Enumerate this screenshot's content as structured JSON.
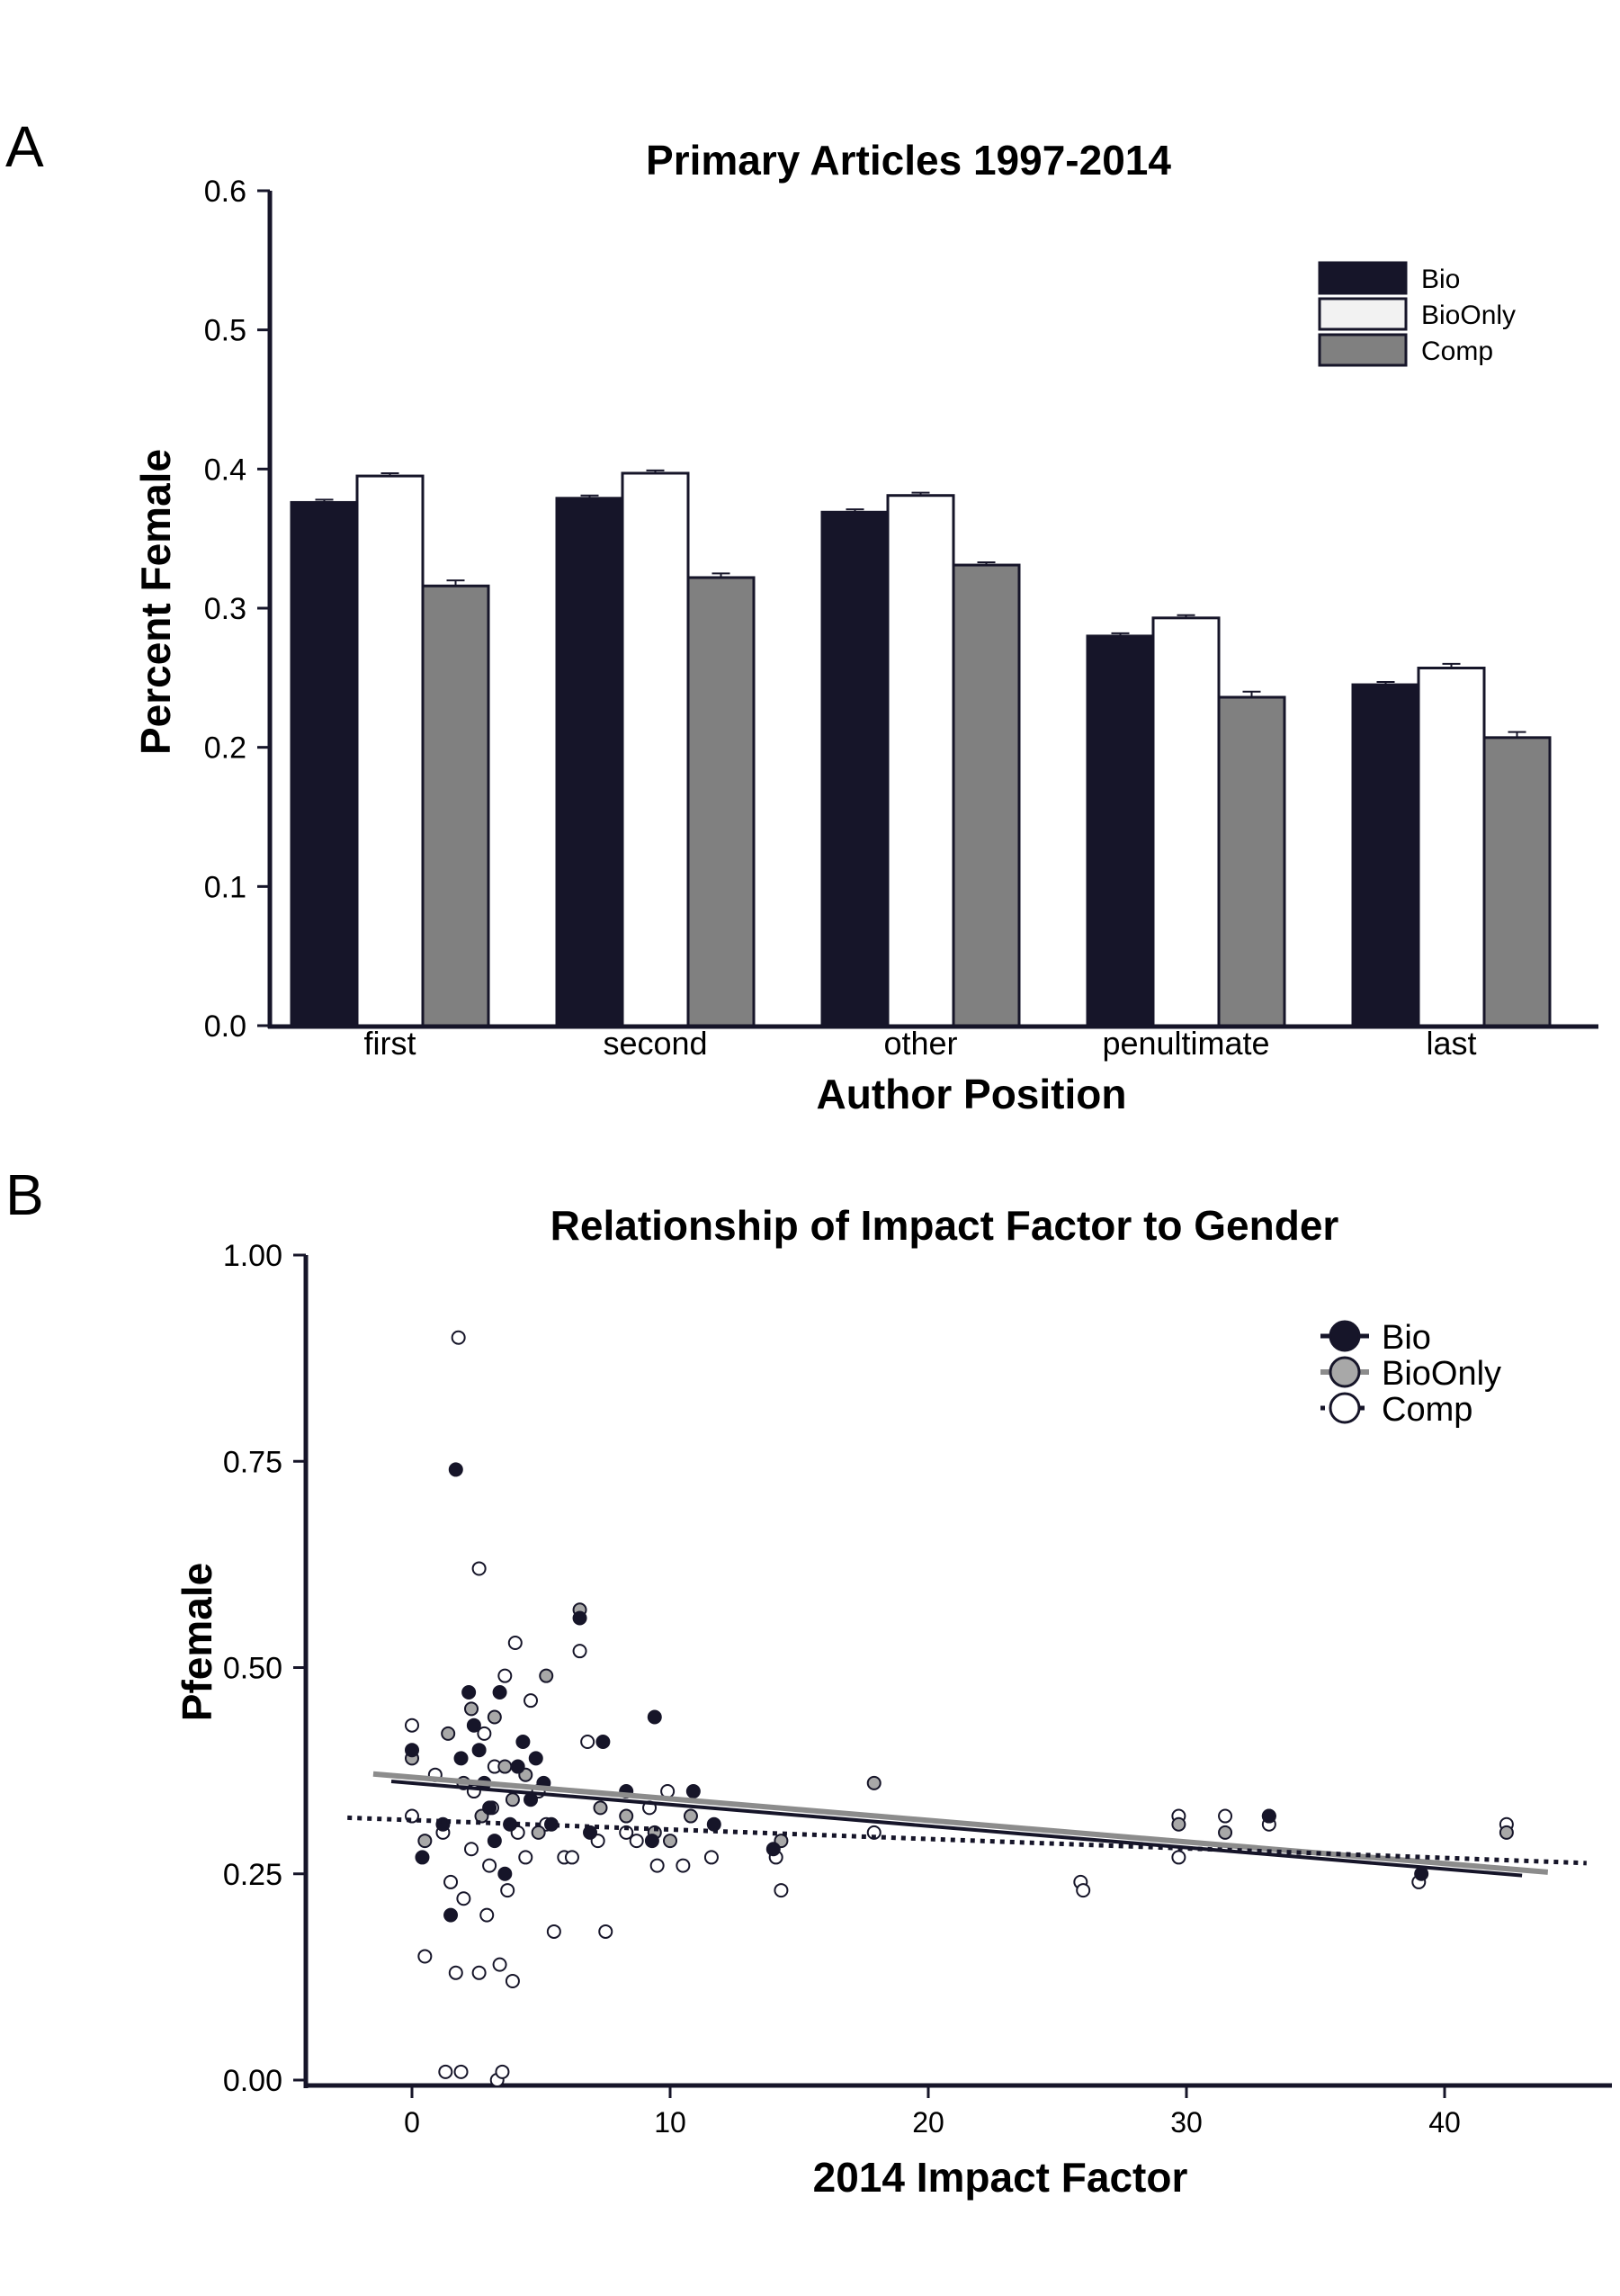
{
  "figure": {
    "panels": [
      "A",
      "B"
    ]
  },
  "colors": {
    "bio": "#161529",
    "bioonly": "#ffffff",
    "comp": "#808080",
    "axis": "#161529",
    "bioonly_dot": "#a8a8a8",
    "bioonly_line": "#8c8c8c"
  },
  "chart_data": [
    {
      "type": "bar",
      "panel": "A",
      "title": "Primary Articles 1997-2014",
      "xlabel": "Author Position",
      "ylabel": "Percent Female",
      "categories": [
        "first",
        "second",
        "other",
        "penultimate",
        "last"
      ],
      "series": [
        {
          "name": "Bio",
          "values": [
            0.376,
            0.379,
            0.369,
            0.28,
            0.245
          ],
          "errors": [
            0.002,
            0.002,
            0.002,
            0.002,
            0.002
          ]
        },
        {
          "name": "BioOnly",
          "values": [
            0.395,
            0.397,
            0.381,
            0.293,
            0.257
          ],
          "errors": [
            0.002,
            0.002,
            0.002,
            0.002,
            0.003
          ]
        },
        {
          "name": "Comp",
          "values": [
            0.316,
            0.322,
            0.331,
            0.236,
            0.207
          ],
          "errors": [
            0.004,
            0.003,
            0.002,
            0.004,
            0.004
          ]
        }
      ],
      "ylim": [
        0,
        0.6
      ],
      "yticks": [
        "0.0",
        "0.1",
        "0.2",
        "0.3",
        "0.4",
        "0.5",
        "0.6"
      ],
      "legend": "top-right",
      "grid": false
    },
    {
      "type": "scatter",
      "panel": "B",
      "title": "Relationship of Impact Factor to Gender",
      "xlabel": "2014 Impact Factor",
      "ylabel": "Pfemale",
      "xlim": [
        -4,
        46
      ],
      "ylim": [
        0,
        1
      ],
      "xticks": [
        "0",
        "10",
        "20",
        "30",
        "40"
      ],
      "yticks": [
        "0.00",
        "0.25",
        "0.50",
        "0.75",
        "1.00"
      ],
      "legend": "top-right",
      "grid": false,
      "series": [
        {
          "name": "Bio",
          "points": [
            [
              0,
              0.4
            ],
            [
              0.4,
              0.27
            ],
            [
              1.2,
              0.31
            ],
            [
              1.5,
              0.2
            ],
            [
              1.7,
              0.74
            ],
            [
              1.9,
              0.39
            ],
            [
              2.2,
              0.47
            ],
            [
              2.4,
              0.43
            ],
            [
              2.6,
              0.4
            ],
            [
              2.8,
              0.36
            ],
            [
              3.0,
              0.33
            ],
            [
              3.2,
              0.29
            ],
            [
              3.4,
              0.47
            ],
            [
              3.6,
              0.25
            ],
            [
              3.8,
              0.31
            ],
            [
              4.1,
              0.38
            ],
            [
              4.3,
              0.41
            ],
            [
              4.6,
              0.34
            ],
            [
              4.8,
              0.39
            ],
            [
              5.1,
              0.36
            ],
            [
              5.4,
              0.31
            ],
            [
              6.5,
              0.56
            ],
            [
              6.9,
              0.3
            ],
            [
              7.4,
              0.41
            ],
            [
              8.3,
              0.35
            ],
            [
              9.3,
              0.29
            ],
            [
              9.4,
              0.44
            ],
            [
              10.9,
              0.35
            ],
            [
              11.7,
              0.31
            ],
            [
              14.0,
              0.28
            ],
            [
              33.2,
              0.32
            ],
            [
              39.1,
              0.25
            ]
          ],
          "trend": [
            [
              -0.8,
              0.362
            ],
            [
              43,
              0.248
            ]
          ]
        },
        {
          "name": "BioOnly",
          "points": [
            [
              0,
              0.39
            ],
            [
              0.5,
              0.29
            ],
            [
              1.4,
              0.42
            ],
            [
              2.0,
              0.36
            ],
            [
              2.3,
              0.45
            ],
            [
              2.7,
              0.32
            ],
            [
              3.2,
              0.44
            ],
            [
              3.6,
              0.38
            ],
            [
              3.9,
              0.34
            ],
            [
              4.4,
              0.37
            ],
            [
              4.9,
              0.3
            ],
            [
              5.2,
              0.49
            ],
            [
              6.5,
              0.57
            ],
            [
              7.3,
              0.33
            ],
            [
              8.3,
              0.32
            ],
            [
              9.4,
              0.3
            ],
            [
              10.0,
              0.29
            ],
            [
              10.8,
              0.32
            ],
            [
              14.3,
              0.29
            ],
            [
              17.9,
              0.36
            ],
            [
              29.7,
              0.31
            ],
            [
              31.5,
              0.3
            ],
            [
              33.2,
              0.32
            ],
            [
              42.4,
              0.3
            ]
          ],
          "trend": [
            [
              -1.5,
              0.371
            ],
            [
              44,
              0.252
            ]
          ]
        },
        {
          "name": "Comp",
          "points": [
            [
              0,
              0.43
            ],
            [
              0,
              0.32
            ],
            [
              0.5,
              0.15
            ],
            [
              0.9,
              0.37
            ],
            [
              1.2,
              0.3
            ],
            [
              1.3,
              0.01
            ],
            [
              1.5,
              0.24
            ],
            [
              1.7,
              0.13
            ],
            [
              1.8,
              0.9
            ],
            [
              1.9,
              0.01
            ],
            [
              2.0,
              0.22
            ],
            [
              2.3,
              0.28
            ],
            [
              2.4,
              0.35
            ],
            [
              2.6,
              0.62
            ],
            [
              2.6,
              0.13
            ],
            [
              2.8,
              0.42
            ],
            [
              2.9,
              0.2
            ],
            [
              3.0,
              0.26
            ],
            [
              3.1,
              0.33
            ],
            [
              3.2,
              0.38
            ],
            [
              3.3,
              0.0
            ],
            [
              3.4,
              0.14
            ],
            [
              3.5,
              0.01
            ],
            [
              3.6,
              0.49
            ],
            [
              3.7,
              0.23
            ],
            [
              3.9,
              0.12
            ],
            [
              4.0,
              0.53
            ],
            [
              4.1,
              0.3
            ],
            [
              4.4,
              0.27
            ],
            [
              4.6,
              0.46
            ],
            [
              4.9,
              0.35
            ],
            [
              5.2,
              0.31
            ],
            [
              5.5,
              0.18
            ],
            [
              5.9,
              0.27
            ],
            [
              6.2,
              0.27
            ],
            [
              6.5,
              0.52
            ],
            [
              6.8,
              0.41
            ],
            [
              7.2,
              0.29
            ],
            [
              7.5,
              0.18
            ],
            [
              8.3,
              0.3
            ],
            [
              8.7,
              0.29
            ],
            [
              9.2,
              0.33
            ],
            [
              9.5,
              0.26
            ],
            [
              9.9,
              0.35
            ],
            [
              10.5,
              0.26
            ],
            [
              11.6,
              0.27
            ],
            [
              14.1,
              0.27
            ],
            [
              14.3,
              0.23
            ],
            [
              17.9,
              0.3
            ],
            [
              25.9,
              0.24
            ],
            [
              26.0,
              0.23
            ],
            [
              29.7,
              0.32
            ],
            [
              29.7,
              0.27
            ],
            [
              31.5,
              0.32
            ],
            [
              33.2,
              0.31
            ],
            [
              39.0,
              0.24
            ],
            [
              42.4,
              0.31
            ]
          ],
          "trend": [
            [
              -2.5,
              0.318
            ],
            [
              45.5,
              0.263
            ]
          ]
        }
      ]
    }
  ]
}
